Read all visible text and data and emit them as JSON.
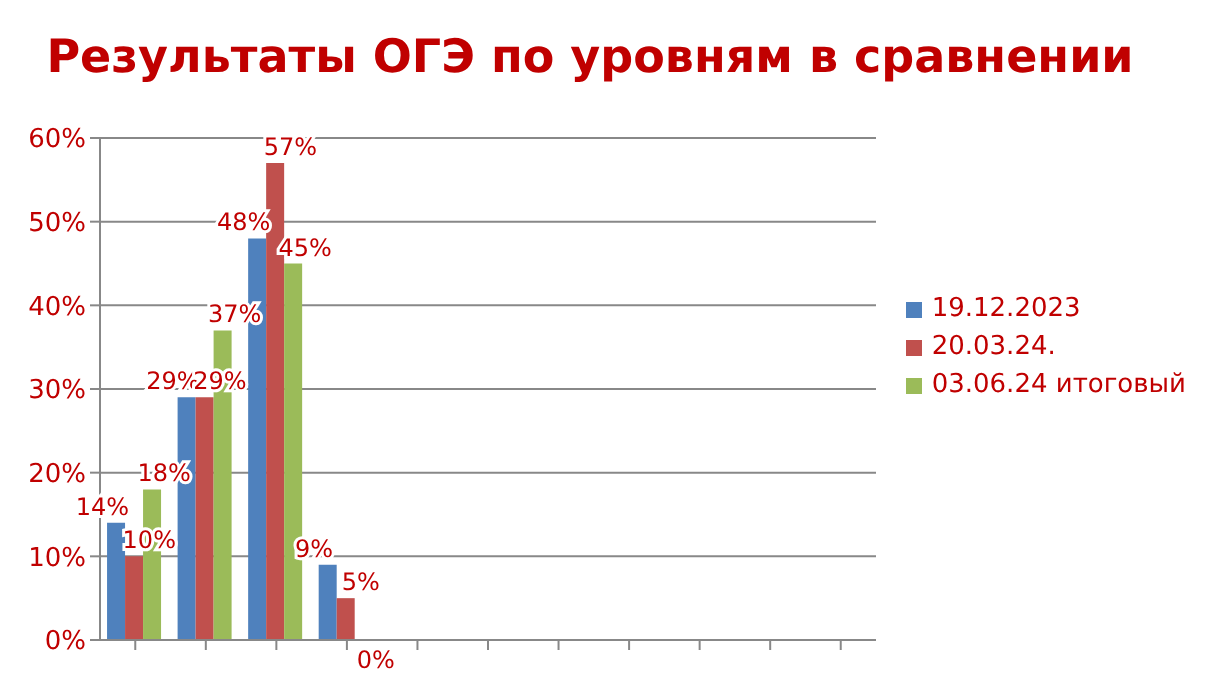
{
  "chart_data": {
    "type": "bar",
    "title": "Результаты ОГЭ по уровням  в сравнении",
    "categories": [
      null,
      null,
      null,
      null,
      null,
      null,
      null,
      null,
      null,
      null,
      null
    ],
    "series": [
      {
        "name": "19.12.2023",
        "color": "#4f81bd",
        "values": [
          14,
          29,
          48,
          9,
          null,
          null,
          null,
          null,
          null,
          null,
          null
        ],
        "value_labels": [
          "14%",
          "29%",
          "48%",
          "9%",
          null,
          null,
          null,
          null,
          null,
          null,
          null
        ]
      },
      {
        "name": "20.03.24.",
        "color": "#c0504d",
        "values": [
          10,
          29,
          57,
          5,
          null,
          null,
          null,
          null,
          null,
          null,
          null
        ],
        "value_labels": [
          "10%",
          "29%",
          "57%",
          "5%",
          null,
          null,
          null,
          null,
          null,
          null,
          null
        ]
      },
      {
        "name": "03.06.24 итоговый",
        "color": "#9bbb59",
        "values": [
          18,
          37,
          45,
          0,
          null,
          null,
          null,
          null,
          null,
          null,
          null
        ],
        "value_labels": [
          "18%",
          "37%",
          "45%",
          "0%",
          null,
          null,
          null,
          null,
          null,
          null,
          null
        ]
      }
    ],
    "ylim": [
      0,
      60
    ],
    "yticks": [
      {
        "value": 0,
        "label": "0%"
      },
      {
        "value": 10,
        "label": "10%"
      },
      {
        "value": 20,
        "label": "20%"
      },
      {
        "value": 30,
        "label": "30%"
      },
      {
        "value": 40,
        "label": "40%"
      },
      {
        "value": 50,
        "label": "50%"
      },
      {
        "value": 60,
        "label": "60%"
      }
    ],
    "grid": "y",
    "legend": "right"
  }
}
